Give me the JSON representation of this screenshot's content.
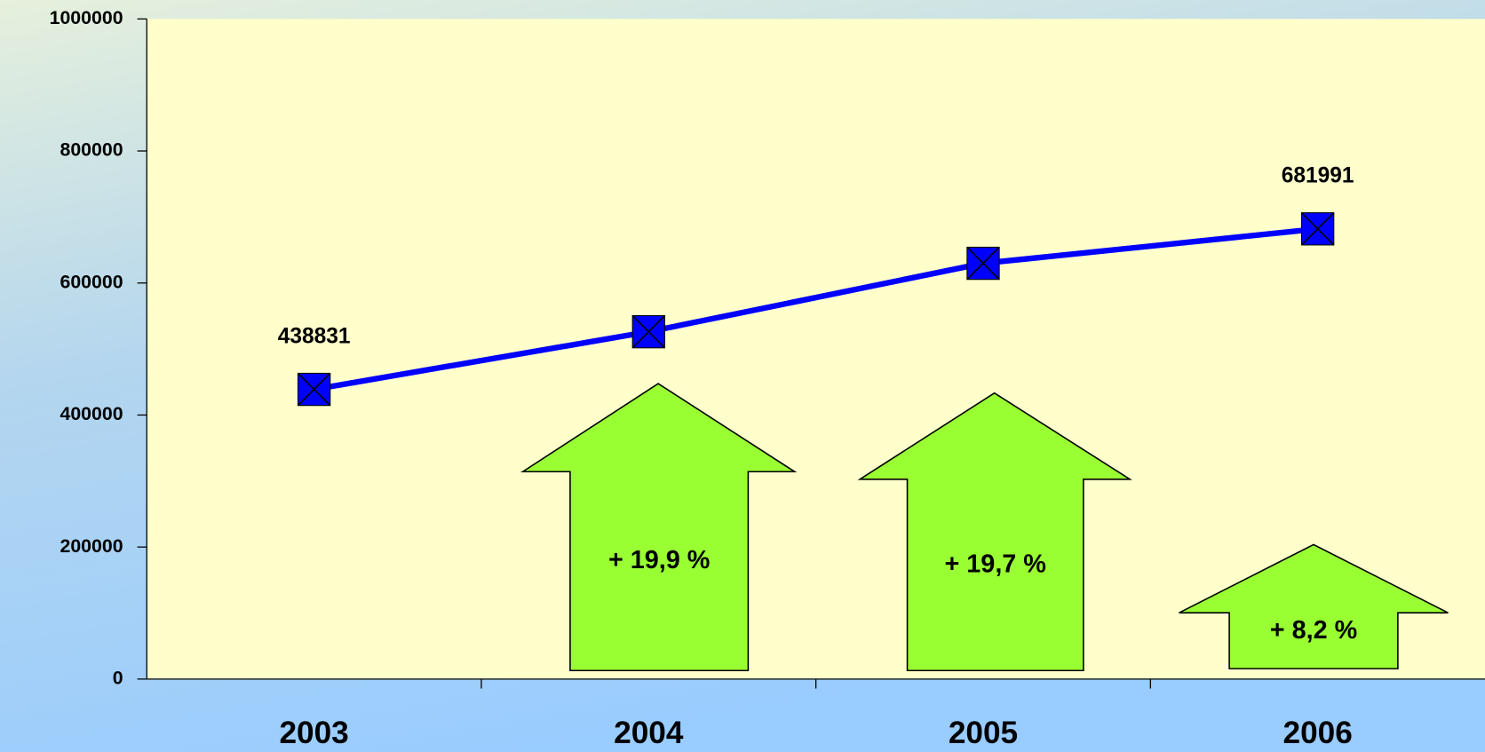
{
  "chart_data": {
    "type": "line",
    "categories": [
      "2003",
      "2004",
      "2005",
      "2006"
    ],
    "values": [
      438831,
      526159,
      629812,
      681991
    ],
    "color": "#0000ff",
    "labeled_points": [
      0,
      3
    ],
    "ylim": [
      0,
      1000000
    ],
    "yticks": [
      0,
      200000,
      400000,
      600000,
      800000,
      1000000
    ],
    "annotations": [
      "+ 19,9 %",
      "+ 19,7 %",
      "+ 8,2 %"
    ]
  }
}
